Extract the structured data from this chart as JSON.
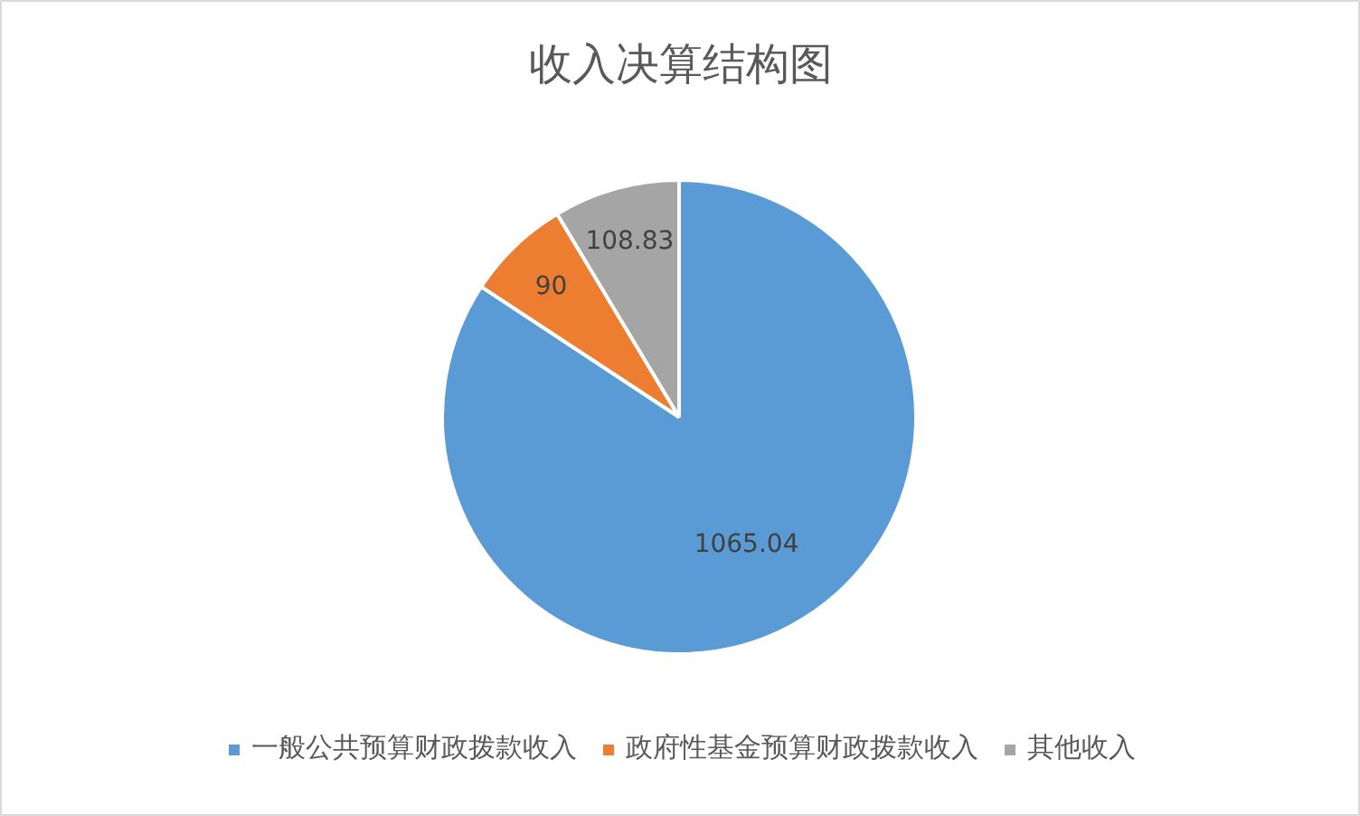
{
  "chart_data": {
    "type": "pie",
    "title": "收入决算结构图",
    "categories": [
      "一般公共预算财政拨款收入",
      "政府性基金预算财政拨款收入",
      "其他收入"
    ],
    "values": [
      1065.04,
      90,
      108.83
    ],
    "colors": [
      "#5b9bd5",
      "#ed7d31",
      "#a5a5a5"
    ],
    "data_labels": true,
    "legend": "bottom"
  }
}
